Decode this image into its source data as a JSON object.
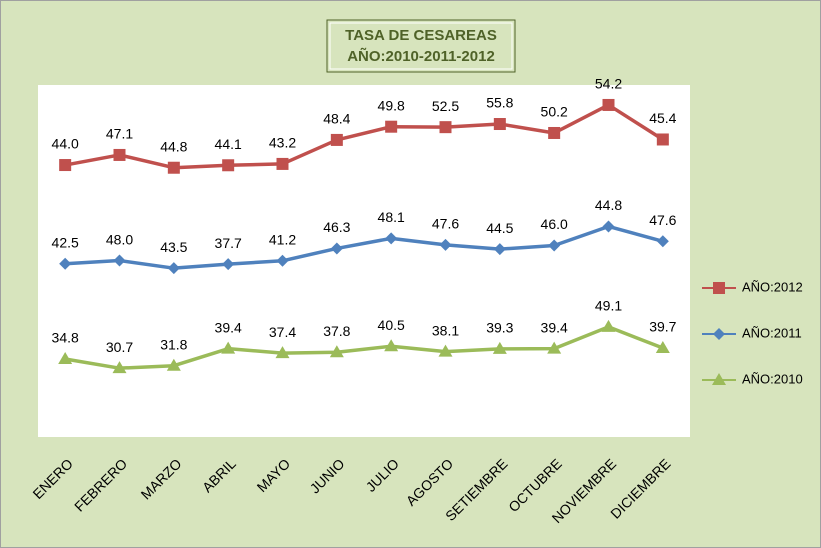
{
  "chart_data": {
    "type": "line",
    "stacked": true,
    "title": [
      "TASA DE CESAREAS",
      "AÑO:2010-2011-2012"
    ],
    "categories": [
      "ENERO",
      "FEBRERO",
      "MARZO",
      "ABRIL",
      "MAYO",
      "JUNIO",
      "JULIO",
      "AGOSTO",
      "SETIEMBRE",
      "OCTUBRE",
      "NOVIEMBRE",
      "DICIEMBRE"
    ],
    "ylim": [
      0,
      157
    ],
    "legend": "right",
    "series": [
      {
        "name": "AÑO:2012",
        "color": "#c0504d",
        "marker": "square",
        "values": [
          44.0,
          47.1,
          44.8,
          44.1,
          43.2,
          48.4,
          49.8,
          52.5,
          55.8,
          50.2,
          54.2,
          45.4
        ],
        "value_labels": [
          "44.0",
          "47.1",
          "44.8",
          "44.1",
          "43.2",
          "48.4",
          "49.8",
          "52.5",
          "55.8",
          "50.2",
          "54.2",
          "45.4"
        ]
      },
      {
        "name": "AÑO:2011",
        "color": "#4f81bd",
        "marker": "diamond",
        "values": [
          42.5,
          48.0,
          43.5,
          37.7,
          41.2,
          46.3,
          48.1,
          47.6,
          44.5,
          46.0,
          44.8,
          47.6
        ],
        "value_labels": [
          "42.5",
          "48.0",
          "43.5",
          "37.7",
          "41.2",
          "46.3",
          "48.1",
          "47.6",
          "44.5",
          "46.0",
          "44.8",
          "47.6"
        ]
      },
      {
        "name": "AÑO:2010",
        "color": "#9bbb59",
        "marker": "triangle",
        "values": [
          34.8,
          30.7,
          31.8,
          39.4,
          37.4,
          37.8,
          40.5,
          38.1,
          39.3,
          39.4,
          49.1,
          39.7
        ],
        "value_labels": [
          "34.8",
          "30.7",
          "31.8",
          "39.4",
          "37.4",
          "37.8",
          "40.5",
          "38.1",
          "39.3",
          "39.4",
          "49.1",
          "39.7"
        ]
      }
    ]
  }
}
